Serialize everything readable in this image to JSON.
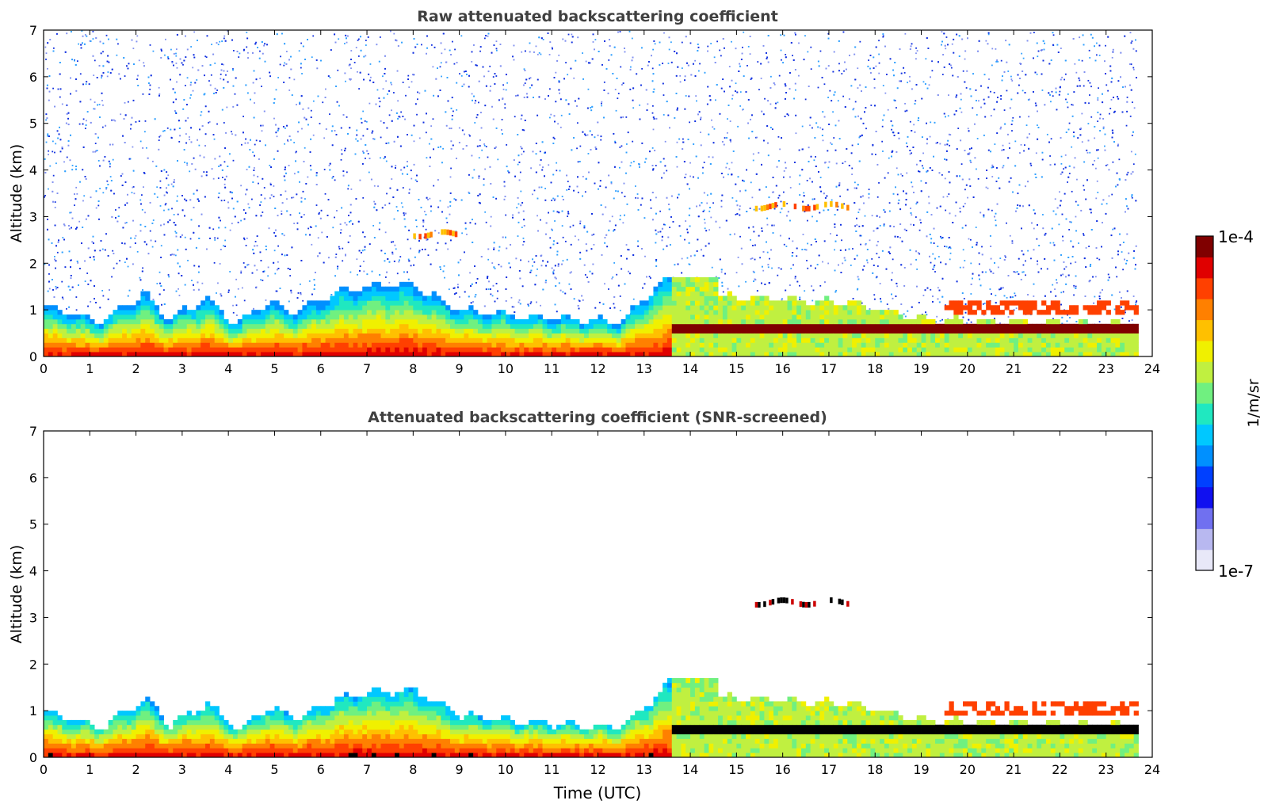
{
  "chart_data": [
    {
      "type": "heatmap",
      "title": "Raw attenuated backscattering coefficient",
      "xlabel": "",
      "ylabel": "Altitude (km)",
      "xlim": [
        0,
        24
      ],
      "ylim": [
        0,
        7
      ],
      "xticks": [
        "0",
        "1",
        "2",
        "3",
        "4",
        "5",
        "6",
        "7",
        "8",
        "9",
        "10",
        "11",
        "12",
        "13",
        "14",
        "15",
        "16",
        "17",
        "18",
        "19",
        "20",
        "21",
        "22",
        "23",
        "24"
      ],
      "yticks": [
        "0",
        "1",
        "2",
        "3",
        "4",
        "5",
        "6",
        "7"
      ],
      "data_end_time": 23.65,
      "boundary_layer_top_km": [
        {
          "time": 0.0,
          "top": 1.05
        },
        {
          "time": 0.5,
          "top": 0.95
        },
        {
          "time": 1.2,
          "top": 0.75
        },
        {
          "time": 2.2,
          "top": 1.35
        },
        {
          "time": 2.7,
          "top": 0.8
        },
        {
          "time": 3.5,
          "top": 1.25
        },
        {
          "time": 4.2,
          "top": 0.7
        },
        {
          "time": 4.8,
          "top": 1.15
        },
        {
          "time": 5.5,
          "top": 0.95
        },
        {
          "time": 6.3,
          "top": 1.35
        },
        {
          "time": 7.0,
          "top": 1.5
        },
        {
          "time": 8.0,
          "top": 1.55
        },
        {
          "time": 9.0,
          "top": 1.0
        },
        {
          "time": 10.5,
          "top": 0.85
        },
        {
          "time": 12.5,
          "top": 0.75
        },
        {
          "time": 13.5,
          "top": 1.7
        },
        {
          "time": 14.5,
          "top": 1.3
        },
        {
          "time": 17.5,
          "top": 1.15
        },
        {
          "time": 19.0,
          "top": 0.8
        },
        {
          "time": 23.65,
          "top": 0.7
        }
      ],
      "features": [
        {
          "kind": "aerosol_layer",
          "t0": 15.4,
          "t1": 17.4,
          "alt_km": 3.2
        },
        {
          "kind": "aerosol_layer",
          "t0": 8.0,
          "t1": 9.0,
          "alt_km": 2.6
        },
        {
          "kind": "cloud_layer",
          "t0": 13.6,
          "t1": 23.65,
          "alt_km": 0.6
        },
        {
          "kind": "cloud_layer",
          "t0": 19.5,
          "t1": 23.65,
          "alt_km": 1.1
        }
      ]
    },
    {
      "type": "heatmap",
      "title": "Attenuated backscattering coefficient (SNR-screened)",
      "xlabel": "Time (UTC)",
      "ylabel": "Altitude (km)",
      "xlim": [
        0,
        24
      ],
      "ylim": [
        0,
        7
      ],
      "xticks": [
        "0",
        "1",
        "2",
        "3",
        "4",
        "5",
        "6",
        "7",
        "8",
        "9",
        "10",
        "11",
        "12",
        "13",
        "14",
        "15",
        "16",
        "17",
        "18",
        "19",
        "20",
        "21",
        "22",
        "23",
        "24"
      ],
      "yticks": [
        "0",
        "1",
        "2",
        "3",
        "4",
        "5",
        "6",
        "7"
      ],
      "data_end_time": 23.65,
      "features": [
        {
          "kind": "aerosol_layer",
          "t0": 15.4,
          "t1": 17.4,
          "alt_km": 3.3
        },
        {
          "kind": "cloud_layer",
          "t0": 13.6,
          "t1": 23.65,
          "alt_km": 0.55
        },
        {
          "kind": "cloud_layer",
          "t0": 19.5,
          "t1": 23.65,
          "alt_km": 1.1
        }
      ]
    }
  ],
  "colorbar": {
    "max_label": "1e-4",
    "min_label": "1e-7",
    "unit": "1/m/sr",
    "scale": "log",
    "colors": [
      "#e8e8f8",
      "#b8b8f0",
      "#7070f0",
      "#1010f0",
      "#0040ff",
      "#0090ff",
      "#00c8ff",
      "#20e8c0",
      "#70f080",
      "#c0f040",
      "#f0f000",
      "#ffc000",
      "#ff8000",
      "#ff4000",
      "#e00000",
      "#800000"
    ]
  }
}
